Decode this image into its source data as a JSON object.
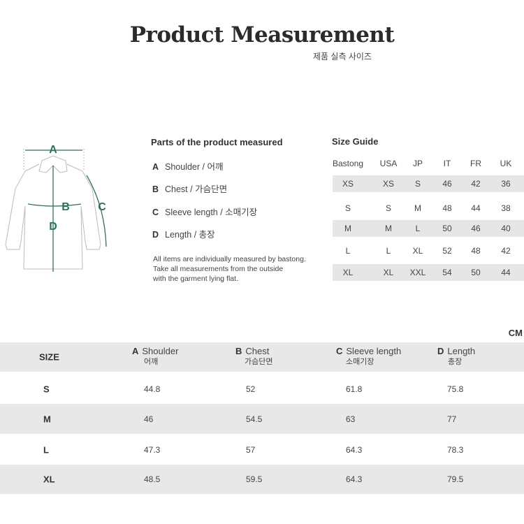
{
  "header": {
    "title": "Product Measurement",
    "subtitle": "제품 실측 사이즈"
  },
  "diagram": {
    "labels": [
      "A",
      "B",
      "C",
      "D"
    ],
    "accent": "#2f7255"
  },
  "parts": {
    "title": "Parts of the product measured",
    "items": [
      {
        "letter": "A",
        "label": "Shoulder / 어깨"
      },
      {
        "letter": "B",
        "label": "Chest / 가슴단면"
      },
      {
        "letter": "C",
        "label": "Sleeve length / 소매기장"
      },
      {
        "letter": "D",
        "label": "Length / 총장"
      }
    ],
    "note": [
      "All items are individually measured by bastong.",
      "Take all measurements from the outside",
      "with the garment lying flat."
    ]
  },
  "size_guide": {
    "title": "Size Guide",
    "columns": [
      "Bastong",
      "USA",
      "JP",
      "IT",
      "FR",
      "UK"
    ],
    "rows": [
      [
        "XS",
        "XS",
        "S",
        "46",
        "42",
        "36"
      ],
      [
        "S",
        "S",
        "M",
        "48",
        "44",
        "38"
      ],
      [
        "M",
        "M",
        "L",
        "50",
        "46",
        "40"
      ],
      [
        "L",
        "L",
        "XL",
        "52",
        "48",
        "42"
      ],
      [
        "XL",
        "XL",
        "XXL",
        "54",
        "50",
        "44"
      ]
    ]
  },
  "measurements": {
    "unit": "CM",
    "size_header": "SIZE",
    "columns": [
      {
        "letter": "A",
        "en": "Shoulder",
        "ko": "어깨"
      },
      {
        "letter": "B",
        "en": "Chest",
        "ko": "가슴단면"
      },
      {
        "letter": "C",
        "en": "Sleeve length",
        "ko": "소매기장"
      },
      {
        "letter": "D",
        "en": "Length",
        "ko": "총장"
      }
    ],
    "rows": [
      {
        "size": "S",
        "values": [
          "44.8",
          "52",
          "61.8",
          "75.8"
        ]
      },
      {
        "size": "M",
        "values": [
          "46",
          "54.5",
          "63",
          "77"
        ]
      },
      {
        "size": "L",
        "values": [
          "47.3",
          "57",
          "64.3",
          "78.3"
        ]
      },
      {
        "size": "XL",
        "values": [
          "48.5",
          "59.5",
          "64.3",
          "79.5"
        ]
      }
    ]
  }
}
